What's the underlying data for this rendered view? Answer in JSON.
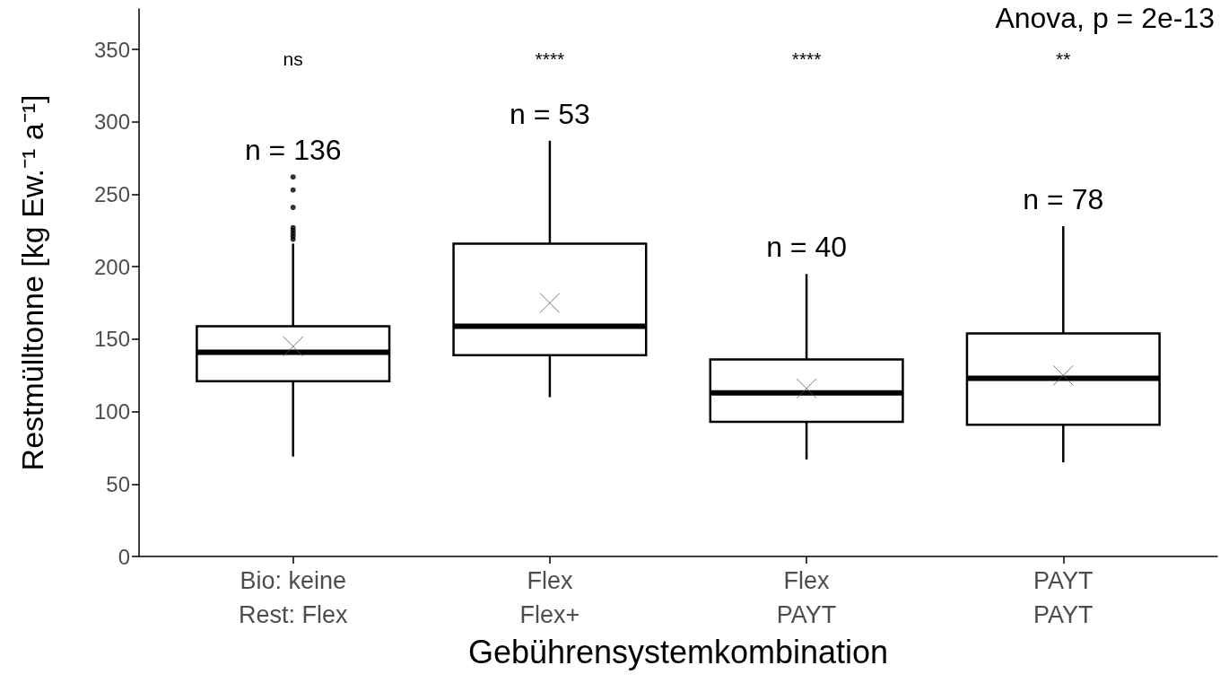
{
  "chart_data": {
    "type": "box",
    "categories": [
      "Bio: keine\nRest: Flex",
      "Flex\nFlex+",
      "Flex\nPAYT",
      "PAYT\nPAYT"
    ],
    "xlabel": "Gebührensystemkombination",
    "ylabel": "Restmülltonne [kg Ew.⁻¹ a⁻¹]",
    "ylim": [
      0,
      378
    ],
    "yticks": [
      0,
      50,
      100,
      150,
      200,
      250,
      300,
      350
    ],
    "series": [
      {
        "color": "#000000",
        "boxes": [
          {
            "low": 69,
            "q1": 121,
            "median": 141,
            "q3": 159,
            "high": 216,
            "mean": 145,
            "outliers": [
              219,
              221,
              223,
              225,
              227,
              241,
              253,
              262
            ]
          },
          {
            "low": 110,
            "q1": 139,
            "median": 159,
            "q3": 216,
            "high": 287,
            "mean": 175
          },
          {
            "low": 67,
            "q1": 93,
            "median": 113,
            "q3": 136,
            "high": 195,
            "mean": 116
          },
          {
            "low": 65,
            "q1": 91,
            "median": 123,
            "q3": 154,
            "high": 228,
            "mean": 125
          }
        ]
      }
    ],
    "annotations": [
      "ns",
      "****",
      "****",
      "**",
      "n = 136",
      "n = 53",
      "n = 40",
      "n = 78",
      "Anova, p = 2e-13"
    ]
  }
}
